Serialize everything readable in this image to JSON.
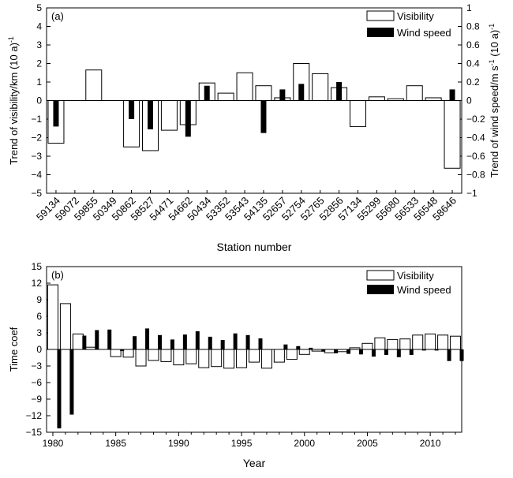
{
  "chart_data": [
    {
      "type": "bar",
      "panel_label": "(a)",
      "xlabel": "Station number",
      "ylabel": "Trend of visibility/km (10 a)",
      "ylabel_sup": "-1",
      "y2label": "Trend of wind speed/m s",
      "y2label_sup1": "-1",
      "y2label_mid": " (10 a)",
      "y2label_sup2": "-1",
      "ylim": [
        -5,
        5
      ],
      "y2lim": [
        -1,
        1
      ],
      "yticks": [
        -5,
        -4,
        -3,
        -2,
        -1,
        0,
        1,
        2,
        3,
        4,
        5
      ],
      "y2ticks": [
        "-1",
        "-0.8",
        "-0.6",
        "-0.4",
        "-0.2",
        "0",
        "0.2",
        "0.4",
        "0.6",
        "0.8",
        "1"
      ],
      "legend_position": "top-right",
      "categories": [
        "59134",
        "59072",
        "59855",
        "50349",
        "50862",
        "58527",
        "54471",
        "54662",
        "50434",
        "53352",
        "53543",
        "54135",
        "52657",
        "52754",
        "52765",
        "52856",
        "57134",
        "55299",
        "55680",
        "56533",
        "56548",
        "58646"
      ],
      "series": [
        {
          "name": "Visibility",
          "axis": "left",
          "style": "open",
          "values": [
            -2.3,
            0,
            1.65,
            0,
            -2.5,
            -2.7,
            -1.6,
            -1.3,
            0.95,
            0.4,
            1.5,
            0.8,
            0.15,
            2.0,
            1.45,
            0.7,
            -1.4,
            0.2,
            0.1,
            0.8,
            0.15,
            -3.65
          ]
        },
        {
          "name": "Wind speed",
          "axis": "right",
          "style": "filled",
          "values": [
            -0.28,
            0,
            0,
            0,
            -0.2,
            -0.31,
            0,
            -0.39,
            0.16,
            0,
            0,
            -0.35,
            0.12,
            0.18,
            0,
            0.2,
            0,
            0,
            0,
            0,
            0,
            0.12
          ]
        }
      ]
    },
    {
      "type": "bar",
      "panel_label": "(b)",
      "xlabel": "Year",
      "ylabel": "Time coef",
      "ylim": [
        -15,
        15
      ],
      "yticks": [
        -15,
        -12,
        -9,
        -6,
        -3,
        0,
        3,
        6,
        9,
        12,
        15
      ],
      "xlim": [
        1979.5,
        2012.5
      ],
      "xticks": [
        1980,
        1985,
        1990,
        1995,
        2000,
        2005,
        2010
      ],
      "legend_position": "top-right",
      "x": [
        1980,
        1981,
        1982,
        1983,
        1984,
        1985,
        1986,
        1987,
        1988,
        1989,
        1990,
        1991,
        1992,
        1993,
        1994,
        1995,
        1996,
        1997,
        1998,
        1999,
        2000,
        2001,
        2002,
        2003,
        2004,
        2005,
        2006,
        2007,
        2008,
        2009,
        2010,
        2011,
        2012
      ],
      "series": [
        {
          "name": "Visibility",
          "style": "open",
          "values": [
            11.7,
            8.3,
            2.8,
            0.4,
            0,
            -1.3,
            -1.4,
            -3.0,
            -2.0,
            -2.2,
            -2.8,
            -2.6,
            -3.3,
            -3.1,
            -3.4,
            -3.3,
            -2.3,
            -3.4,
            -2.3,
            -1.8,
            -0.9,
            -0.3,
            -0.6,
            -0.4,
            0.3,
            1.1,
            2.1,
            1.8,
            1.9,
            2.6,
            2.8,
            2.6,
            2.4
          ]
        },
        {
          "name": "Wind speed",
          "style": "filled",
          "values": [
            -14.3,
            -11.8,
            2.5,
            3.5,
            3.6,
            -0.3,
            2.4,
            3.8,
            2.6,
            1.8,
            2.7,
            3.3,
            2.3,
            1.7,
            2.9,
            2.6,
            2.0,
            0,
            0.9,
            0.6,
            0.3,
            -0.4,
            -0.7,
            -0.8,
            -0.9,
            -1.3,
            -1.0,
            -1.4,
            -1.0,
            -0.2,
            -0.2,
            -2.1,
            -2.1
          ]
        }
      ]
    }
  ]
}
